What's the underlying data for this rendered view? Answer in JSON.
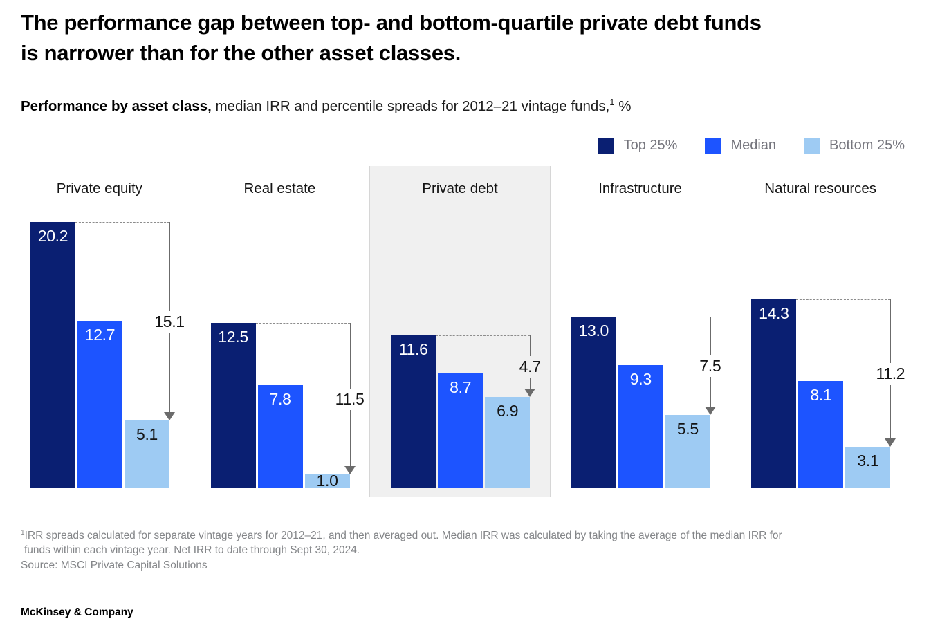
{
  "headline": {
    "line1": "The performance gap between top- and bottom-quartile private debt funds",
    "line2": "is narrower than for the other asset classes."
  },
  "subtitle": {
    "bold": "Performance by asset class,",
    "rest": " median IRR and percentile spreads for 2012–21 vintage funds,",
    "sup": "1",
    "suffix": " %"
  },
  "legend": {
    "items": [
      {
        "label": "Top 25%",
        "color": "#0a1f72"
      },
      {
        "label": "Median",
        "color": "#1d54ff"
      },
      {
        "label": "Bottom 25%",
        "color": "#9ecbf3"
      }
    ]
  },
  "chart_data": {
    "type": "bar",
    "title": "Performance by asset class",
    "subtitle": "median IRR and percentile spreads for 2012–21 vintage funds, %",
    "unit": "%",
    "ylim": [
      0,
      22
    ],
    "grid": false,
    "legend_position": "top-right",
    "series_names": [
      "Top 25%",
      "Median",
      "Bottom 25%"
    ],
    "colors": [
      "#0a1f72",
      "#1d54ff",
      "#9ecbf3"
    ],
    "label_colors": [
      "#ffffff",
      "#ffffff",
      "#141414"
    ],
    "categories": [
      "Private equity",
      "Real estate",
      "Private debt",
      "Infrastructure",
      "Natural resources"
    ],
    "panels": [
      {
        "category": "Private equity",
        "values": [
          20.2,
          12.7,
          5.1
        ],
        "labels": [
          "20.2",
          "12.7",
          "5.1"
        ],
        "spread": 15.1,
        "spread_label": "15.1",
        "highlight": false
      },
      {
        "category": "Real estate",
        "values": [
          12.5,
          7.8,
          1.0
        ],
        "labels": [
          "12.5",
          "7.8",
          "1.0"
        ],
        "spread": 11.5,
        "spread_label": "11.5",
        "highlight": false
      },
      {
        "category": "Private debt",
        "values": [
          11.6,
          8.7,
          6.9
        ],
        "labels": [
          "11.6",
          "8.7",
          "6.9"
        ],
        "spread": 4.7,
        "spread_label": "4.7",
        "highlight": true
      },
      {
        "category": "Infrastructure",
        "values": [
          13.0,
          9.3,
          5.5
        ],
        "labels": [
          "13.0",
          "9.3",
          "5.5"
        ],
        "spread": 7.5,
        "spread_label": "7.5",
        "highlight": false
      },
      {
        "category": "Natural resources",
        "values": [
          14.3,
          8.1,
          3.1
        ],
        "labels": [
          "14.3",
          "8.1",
          "3.1"
        ],
        "spread": 11.2,
        "spread_label": "11.2",
        "highlight": false
      }
    ],
    "highlight_bg": "#f0f0f0"
  },
  "footnote": {
    "sup": "1",
    "line1": "IRR spreads calculated for separate vintage years for 2012–21, and then averaged out. Median IRR was calculated by taking the average of the median IRR for",
    "line2": "funds within each vintage year. Net IRR to date through Sept 30, 2024.",
    "source": "Source: MSCI Private Capital Solutions"
  },
  "logo": "McKinsey & Company"
}
